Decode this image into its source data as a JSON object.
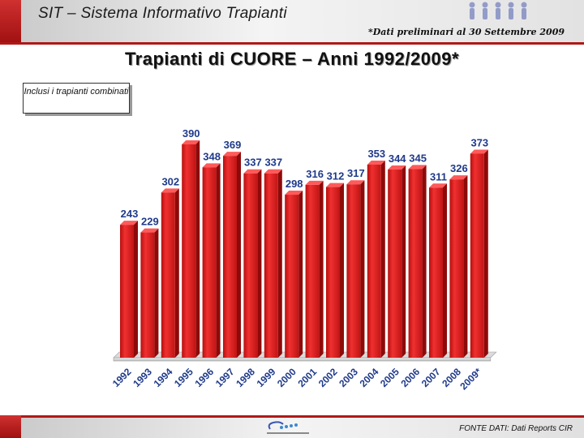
{
  "header": {
    "title": "SIT – Sistema Informativo Trapianti",
    "note": "*Dati preliminari al 30 Settembre 2009"
  },
  "note_box": "Inclusi i trapianti combinati",
  "footer": {
    "source": "FONTE DATI: Dati Reports CIR"
  },
  "colors": {
    "bar": "#e01e1e",
    "bar_dark": "#8e0a0a",
    "accent": "#b01818",
    "label": "#1f3a8a"
  },
  "chart_data": {
    "type": "bar",
    "title": "Trapianti di CUORE – Anni 1992/2009*",
    "categories": [
      "1992",
      "1993",
      "1994",
      "1995",
      "1996",
      "1997",
      "1998",
      "1999",
      "2000",
      "2001",
      "2002",
      "2003",
      "2004",
      "2005",
      "2006",
      "2007",
      "2008",
      "2009*"
    ],
    "values": [
      243,
      229,
      302,
      390,
      348,
      369,
      337,
      337,
      298,
      316,
      312,
      317,
      353,
      344,
      345,
      311,
      326,
      373
    ],
    "ylim": [
      0,
      460
    ],
    "grid": false,
    "legend": "none"
  }
}
